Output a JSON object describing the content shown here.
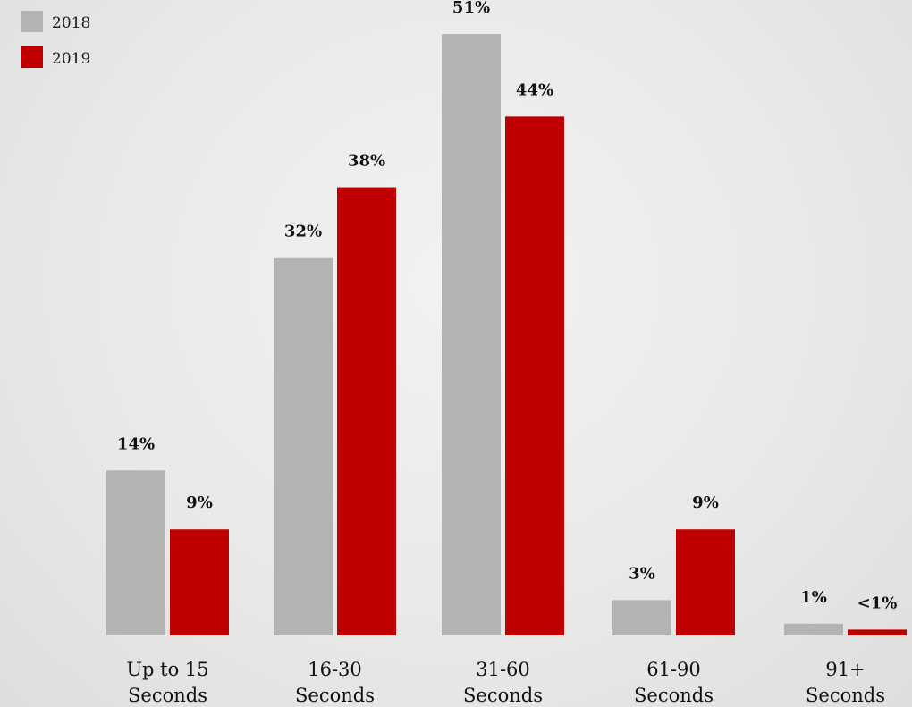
{
  "chart_data": {
    "type": "bar",
    "categories": [
      [
        "Up to 15",
        "Seconds"
      ],
      [
        "16-30",
        "Seconds"
      ],
      [
        "31-60",
        "Seconds"
      ],
      [
        "61-90",
        "Seconds"
      ],
      [
        "91+",
        "Seconds"
      ]
    ],
    "series": [
      {
        "name": "2018",
        "color": "#b3b3b3",
        "values": [
          14,
          32,
          51,
          3,
          1
        ],
        "labels": [
          "14%",
          "32%",
          "51%",
          "3%",
          "1%"
        ]
      },
      {
        "name": "2019",
        "color": "#c00000",
        "values": [
          9,
          38,
          44,
          9,
          0.5
        ],
        "labels": [
          "9%",
          "38%",
          "44%",
          "9%",
          "<1%"
        ]
      }
    ],
    "ylim": [
      0,
      51
    ],
    "grid": false,
    "legend_position": "top-left",
    "title": "",
    "xlabel": "",
    "ylabel": ""
  }
}
